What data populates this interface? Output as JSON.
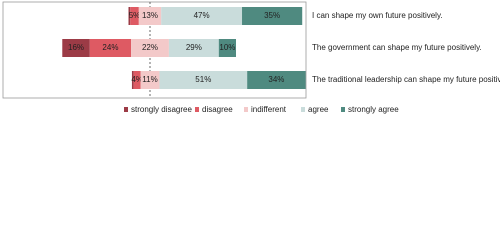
{
  "chart_data": {
    "type": "diverging-bar",
    "categories": [
      "I can shape my own future positively.",
      "The government can shape my future positively.",
      "The traditional leadership can shape my future positively."
    ],
    "series": [
      {
        "name": "strongly disagree",
        "color": "#9c3b46",
        "values": [
          1,
          16,
          1
        ],
        "value_labels": [
          null,
          "16%",
          null
        ]
      },
      {
        "name": "disagree",
        "color": "#de5a63",
        "values": [
          5,
          24,
          4
        ],
        "value_labels": [
          "5%",
          "24%",
          "4%"
        ]
      },
      {
        "name": "indifferent",
        "color": "#f3c9c9",
        "values": [
          13,
          22,
          11
        ],
        "value_labels": [
          "13%",
          "22%",
          "11%"
        ]
      },
      {
        "name": "agree",
        "color": "#c9dcdb",
        "values": [
          47,
          29,
          51
        ],
        "value_labels": [
          "47%",
          "29%",
          "51%"
        ]
      },
      {
        "name": "strongly agree",
        "color": "#4f8a80",
        "values": [
          35,
          10,
          34
        ],
        "value_labels": [
          "35%",
          "10%",
          "34%"
        ]
      }
    ],
    "legend": "bottom"
  }
}
